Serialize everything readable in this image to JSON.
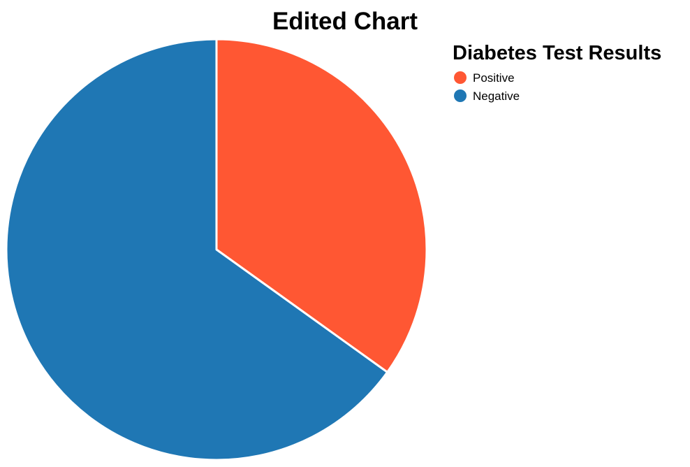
{
  "chart_data": {
    "type": "pie",
    "title": "Edited Chart",
    "legend": {
      "title": "Diabetes Test Results",
      "position": "top-right"
    },
    "slices": [
      {
        "label": "Positive",
        "value": 34.9,
        "color": "#ff5733"
      },
      {
        "label": "Negative",
        "value": 65.1,
        "color": "#1f77b4"
      }
    ],
    "start_angle_deg": 0,
    "direction": "clockwise"
  }
}
